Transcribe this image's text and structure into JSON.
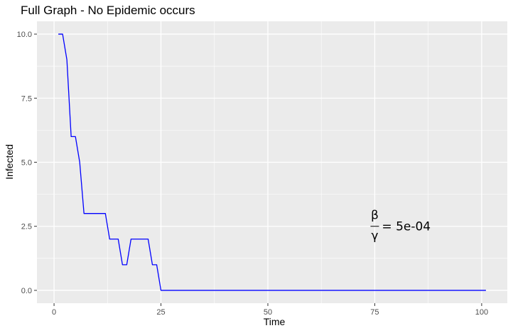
{
  "chart_data": {
    "type": "line",
    "title": "Full Graph - No Epidemic occurs",
    "xlabel": "Time",
    "ylabel": "Infected",
    "xlim": [
      -4,
      106
    ],
    "ylim": [
      -0.5,
      10.5
    ],
    "x_ticks": [
      0,
      25,
      50,
      75,
      100
    ],
    "x_tick_labels": [
      "0",
      "25",
      "50",
      "75",
      "100"
    ],
    "y_ticks": [
      0,
      2.5,
      5,
      7.5,
      10
    ],
    "y_tick_labels": [
      "0.0",
      "2.5",
      "5.0",
      "7.5",
      "10.0"
    ],
    "grid": true,
    "legend": "none",
    "colors": {
      "line": "#0000ff",
      "panel": "#ebebeb",
      "grid": "#ffffff"
    },
    "series": [
      {
        "x": [
          1,
          2,
          3,
          4,
          5,
          6,
          7,
          8,
          9,
          10,
          11,
          12,
          13,
          14,
          15,
          16,
          17,
          18,
          19,
          20,
          21,
          22,
          23,
          24,
          25,
          26,
          101
        ],
        "y": [
          10,
          10,
          9,
          6,
          6,
          5,
          3,
          3,
          3,
          3,
          3,
          3,
          2,
          2,
          2,
          1,
          1,
          2,
          2,
          2,
          2,
          2,
          1,
          1,
          0,
          0,
          0
        ]
      }
    ],
    "annotation": {
      "numerator": "β",
      "denominator": "γ",
      "rhs": "= 5e-04",
      "x": 75,
      "y": 2.5
    }
  }
}
